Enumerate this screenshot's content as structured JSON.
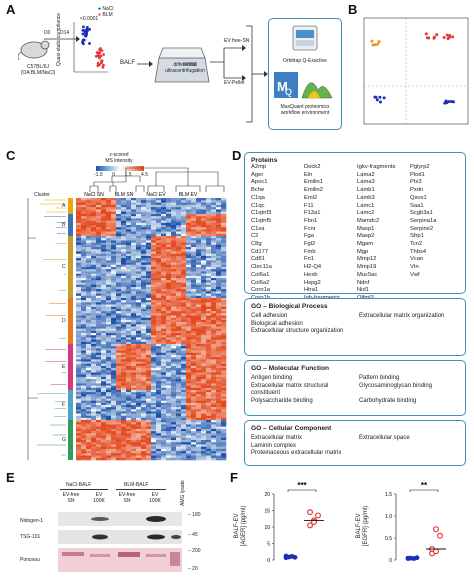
{
  "panels": {
    "A": "A",
    "B": "B",
    "C": "C",
    "D": "D",
    "E": "E",
    "F": "F"
  },
  "panel_a": {
    "mouse_label": "C57BL/6J\n(OA BLM/NaCl)",
    "d0": "D0",
    "d14": "D14",
    "ylabel": "Quasi-static compliance",
    "pval": "<0.0001",
    "legend": [
      "NaCl",
      "BLM"
    ],
    "balf": "BALF",
    "centrifuge": "differential\nultracentrifugation",
    "ev_free": "EV free-SN",
    "ev_pellet": "EV-Pellet",
    "orbitrap": "Orbitrap Q-Exactive",
    "maxquant": "MaxQuant proteomics\nworkflow environment"
  },
  "panel_c": {
    "colorbar_title": "z-scored\nMS intensity",
    "colorbar_ticks": [
      "-1.5",
      "0",
      "1.5",
      "4.5"
    ],
    "cluster_label": "Cluster",
    "columns": [
      "NaCl SN",
      "BLM SN",
      "NaCl EV",
      "BLM EV"
    ],
    "clusters": [
      "A",
      "B",
      "C",
      "D",
      "E",
      "F",
      "G"
    ]
  },
  "panel_d": {
    "proteins_title": "Proteins",
    "proteins": [
      [
        "A2mp",
        "Ager",
        "Apoc1",
        "Bche",
        "C1qa",
        "C1qc",
        "C1qtnf3",
        "C1qtnf5",
        "C1sa",
        "C2",
        "C8g",
        "Cd177",
        "Cd81",
        "Clec11a",
        "Col6a1",
        "Col6a2",
        "Coro1a",
        "Coro1b",
        "Cybb"
      ],
      [
        "Dock2",
        "Eln",
        "Emilin1",
        "Emilin2",
        "Eml2",
        "F11",
        "F13a1",
        "Fbn1",
        "Fcnr",
        "Fga",
        "Fgl2",
        "Fmb",
        "Fn1",
        "H2-Q4",
        "Hexb",
        "Hspg2",
        "Htra1",
        "Igh-fragments"
      ],
      [
        "Igkv-fragments",
        "Lama2",
        "Lama3",
        "Lamb1",
        "Lamb3",
        "Lamc1",
        "Lamc2",
        "Mamdc2",
        "Masp1",
        "Masp2",
        "Mgam",
        "Mgp",
        "Mmp12",
        "Mmp19",
        "Muc5ac",
        "Ndnf",
        "Nid1",
        "Olfml3",
        "Pdpn"
      ],
      [
        "Pglyrp2",
        "Plod1",
        "Ptx3",
        "Pxdn",
        "Qsox1",
        "Saa1",
        "Scgb3a1",
        "Serpina1a",
        "Serpine2",
        "Sfrp1",
        "Tcn2",
        "Thbs4",
        "Vcan",
        "Vtn",
        "Vwf"
      ]
    ],
    "bp_title": "GO – Biological Process",
    "bp": [
      "Cell adhesion",
      "Extracellular matrix organization",
      "Biological adhesion",
      "",
      "Extracellular structure organization",
      ""
    ],
    "mf_title": "GO – Molecular Function",
    "mf": [
      "Antigen binding",
      "Pattern binding",
      "Extracellular matrix structural constituent",
      "Glycosaminoglycan binding",
      "Polysaccharide binding",
      "Carbohydrate binding"
    ],
    "cc_title": "GO – Cellular Component",
    "cc": [
      "Extracellular matrix",
      "Extracellular space",
      "Laminin complex",
      "",
      "Proteinaceous extracellular matrix",
      ""
    ]
  },
  "panel_e": {
    "nacl": "NaCl-BALF",
    "blm": "BLM-BALF",
    "lanes": [
      "EV-free\nSN",
      "EV\n100K",
      "EV-free\nSN",
      "EV\n100K"
    ],
    "amg": "AMG lysate",
    "rows": [
      "Nidogen-1",
      "TSG-101",
      "Ponceau"
    ],
    "markers": [
      "– 180",
      "– 45",
      "– 200",
      "– 20"
    ]
  },
  "panel_f": {
    "charts": [
      {
        "ylabel": "BALF-EV\n[AGER] (pg/ml)",
        "sig": "***",
        "yticks": [
          "0",
          "5",
          "10",
          "15",
          "20"
        ]
      },
      {
        "ylabel": "BALF-EV\n[EGFR] (pg/ml)",
        "sig": "**",
        "yticks": [
          "0",
          "0.5",
          "1.0",
          "1.5"
        ]
      }
    ]
  },
  "colors": {
    "nacl": "#1b2fb5",
    "blm": "#e4393b",
    "box": "#3d8fb6",
    "heat_low": "#1850a8",
    "heat_mid": "#ffffff",
    "heat_high": "#e34a1f"
  }
}
